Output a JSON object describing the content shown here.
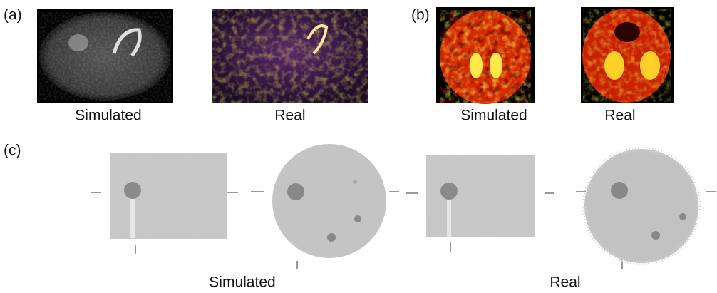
{
  "panels": [
    {
      "label": "(a)",
      "captions": [
        "Simulated",
        "Real"
      ]
    },
    {
      "label": "(b)",
      "captions": [
        "Simulated",
        "Real"
      ]
    },
    {
      "label": "(c)",
      "captions": [
        "Simulated",
        "Real"
      ]
    }
  ]
}
